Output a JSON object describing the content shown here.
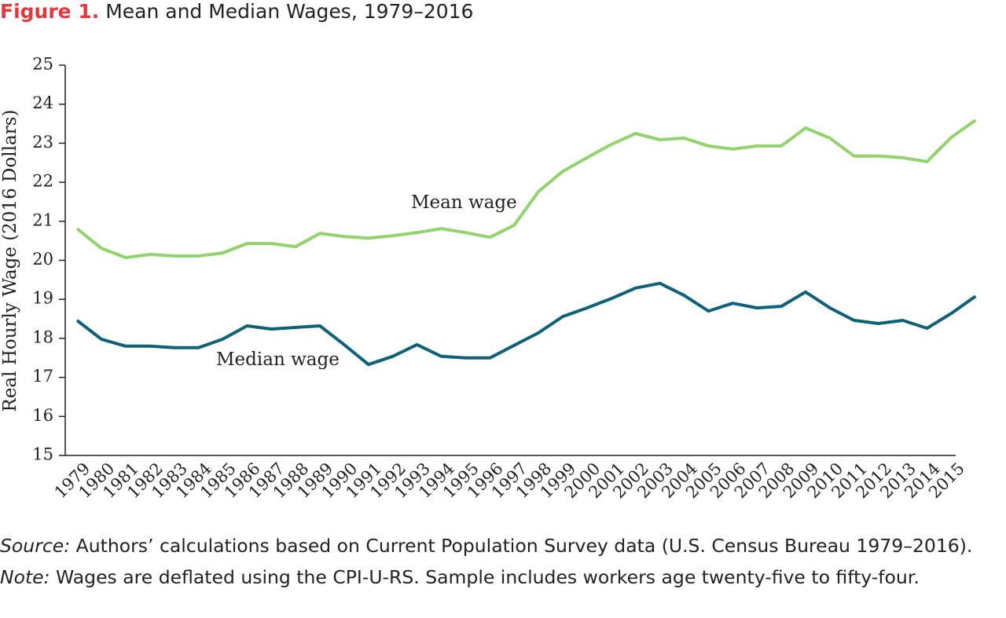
{
  "chart_data": {
    "type": "line",
    "figure_label": "Figure 1.",
    "title": "Mean and Median Wages, 1979–2016",
    "y_label": "Real Hourly Wage (2016 Dollars)",
    "categories": [
      "1979",
      "1980",
      "1981",
      "1982",
      "1983",
      "1984",
      "1985",
      "1986",
      "1987",
      "1988",
      "1989",
      "1990",
      "1991",
      "1992",
      "1993",
      "1994",
      "1995",
      "1996",
      "1997",
      "1998",
      "1999",
      "2000",
      "2001",
      "2002",
      "2003",
      "2004",
      "2005",
      "2006",
      "2007",
      "2008",
      "2009",
      "2010",
      "2011",
      "2012",
      "2013",
      "2014",
      "2015",
      null
    ],
    "series": [
      {
        "name": "Mean wage",
        "color": "#92d36e",
        "values": [
          20.81,
          20.31,
          20.07,
          20.15,
          20.11,
          20.11,
          20.19,
          20.43,
          20.43,
          20.35,
          20.69,
          20.61,
          20.57,
          20.63,
          20.71,
          20.81,
          20.71,
          20.59,
          20.9,
          21.76,
          22.28,
          22.63,
          22.97,
          23.25,
          23.09,
          23.13,
          22.93,
          22.85,
          22.93,
          22.93,
          23.39,
          23.13,
          22.67,
          22.67,
          22.63,
          22.53,
          23.15,
          23.59
        ]
      },
      {
        "name": "Median wage",
        "color": "#0f6178",
        "values": [
          18.46,
          17.98,
          17.8,
          17.8,
          17.76,
          17.76,
          17.98,
          18.32,
          18.24,
          18.28,
          18.32,
          17.84,
          17.33,
          17.54,
          17.84,
          17.54,
          17.5,
          17.5,
          17.82,
          18.14,
          18.56,
          18.78,
          19.02,
          19.29,
          19.41,
          19.1,
          18.7,
          18.9,
          18.78,
          18.82,
          19.19,
          18.78,
          18.46,
          18.38,
          18.46,
          18.26,
          18.64,
          19.08
        ]
      }
    ],
    "ylim": [
      15,
      25
    ],
    "yticks": [
      15,
      16,
      17,
      18,
      19,
      20,
      21,
      22,
      23,
      24,
      25
    ],
    "grid": false,
    "source_label": "Source:",
    "source_text": "Authors’ calculations based on Current Population Survey data (U.S. Census Bureau 1979–2016).",
    "note_label": "Note:",
    "note_text": "Wages are deflated using the CPI-U-RS. Sample includes workers age twenty-five to fifty-four."
  }
}
